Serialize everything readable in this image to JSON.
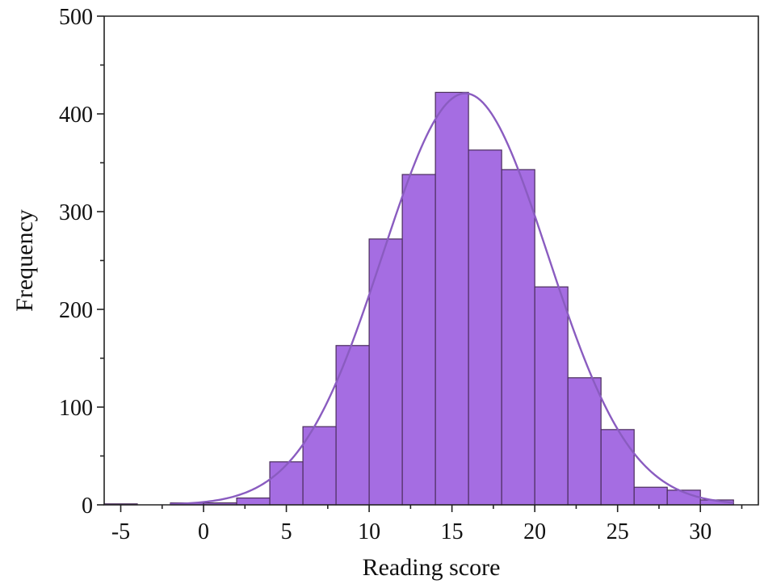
{
  "chart_data": {
    "type": "bar",
    "subtype": "histogram",
    "xlabel": "Reading score",
    "ylabel": "Frequency",
    "xlim": [
      -6,
      33.5
    ],
    "ylim": [
      0,
      500
    ],
    "xticks": [
      -5,
      0,
      5,
      10,
      15,
      20,
      25,
      30
    ],
    "yticks": [
      0,
      100,
      200,
      300,
      400,
      500
    ],
    "bin_width": 2,
    "bins": [
      {
        "start": -6,
        "end": -4,
        "value": 1
      },
      {
        "start": -2,
        "end": 0,
        "value": 2
      },
      {
        "start": 0,
        "end": 2,
        "value": 2
      },
      {
        "start": 2,
        "end": 4,
        "value": 7
      },
      {
        "start": 4,
        "end": 6,
        "value": 44
      },
      {
        "start": 6,
        "end": 8,
        "value": 80
      },
      {
        "start": 8,
        "end": 10,
        "value": 163
      },
      {
        "start": 10,
        "end": 12,
        "value": 272
      },
      {
        "start": 12,
        "end": 14,
        "value": 338
      },
      {
        "start": 14,
        "end": 16,
        "value": 422
      },
      {
        "start": 16,
        "end": 18,
        "value": 363
      },
      {
        "start": 18,
        "end": 20,
        "value": 343
      },
      {
        "start": 20,
        "end": 22,
        "value": 223
      },
      {
        "start": 22,
        "end": 24,
        "value": 130
      },
      {
        "start": 24,
        "end": 26,
        "value": 77
      },
      {
        "start": 26,
        "end": 28,
        "value": 18
      },
      {
        "start": 28,
        "end": 30,
        "value": 15
      },
      {
        "start": 30,
        "end": 32,
        "value": 5
      }
    ],
    "fit_curve": {
      "type": "normal",
      "mean": 15.8,
      "sd": 5.0,
      "peak": 421,
      "x_range": [
        -2,
        32
      ]
    },
    "colors": {
      "bar_fill": "#a56de2",
      "bar_stroke": "#4a2d5c",
      "curve": "#8a5cc0",
      "axis": "#222222"
    },
    "grid": false,
    "legend": "none"
  }
}
